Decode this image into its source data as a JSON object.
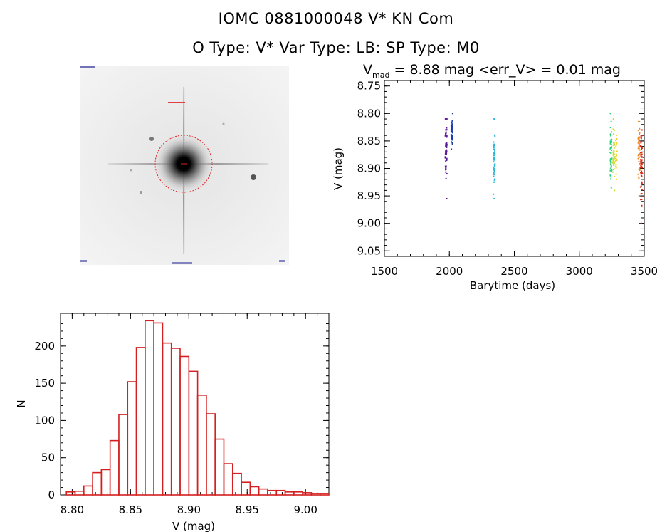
{
  "header": {
    "title_line1": "IOMC 0881000048    V* KN Com",
    "title_line2": "O Type: V*  Var Type: LB:  SP Type: M0"
  },
  "lightcurve": {
    "title_main": "V",
    "title_sub": "mad",
    "title_rest": " = 8.88 mag <err_V> = 0.01 mag",
    "xlabel": "Barytime (days)",
    "ylabel": "V (mag)",
    "xlim": [
      1500,
      3500
    ],
    "ylim": [
      9.06,
      8.74
    ],
    "xticks": [
      "1500",
      "2000",
      "2500",
      "3000",
      "3500"
    ],
    "yticks": [
      "8.75",
      "8.80",
      "8.85",
      "8.90",
      "8.95",
      "9.00",
      "9.05"
    ],
    "clusters": [
      {
        "x": 1975,
        "ymin": 8.81,
        "ymax": 8.955,
        "center": 8.865,
        "color": "#5a1a9a",
        "n": 60
      },
      {
        "x": 2020,
        "ymin": 8.8,
        "ymax": 8.865,
        "center": 8.835,
        "color": "#1a3ab0",
        "n": 45
      },
      {
        "x": 2345,
        "ymin": 8.81,
        "ymax": 8.955,
        "center": 8.885,
        "color": "#2bb8d8",
        "n": 55
      },
      {
        "x": 3245,
        "ymin": 8.8,
        "ymax": 8.935,
        "center": 8.875,
        "color": "#2ad27a",
        "n": 50
      },
      {
        "x": 3265,
        "ymin": 8.81,
        "ymax": 8.94,
        "center": 8.875,
        "color": "#c8e030",
        "n": 40
      },
      {
        "x": 3285,
        "ymin": 8.84,
        "ymax": 8.92,
        "center": 8.875,
        "color": "#f2d020",
        "n": 25
      },
      {
        "x": 3460,
        "ymin": 8.815,
        "ymax": 8.95,
        "center": 8.87,
        "color": "#f08a20",
        "n": 40
      },
      {
        "x": 3478,
        "ymin": 8.83,
        "ymax": 9.0,
        "center": 8.89,
        "color": "#e02a10",
        "n": 60
      }
    ]
  },
  "histogram": {
    "xlabel": "V (mag)",
    "ylabel": "N",
    "xlim": [
      8.79,
      9.02
    ],
    "ylim": [
      0,
      240
    ],
    "xticks": [
      "8.80",
      "8.85",
      "8.90",
      "8.95",
      "9.00"
    ],
    "yticks": [
      "0",
      "50",
      "100",
      "150",
      "200"
    ],
    "bin_start": 8.795,
    "bin_width": 0.0075,
    "counts": [
      4,
      5,
      12,
      30,
      34,
      73,
      108,
      152,
      198,
      234,
      231,
      204,
      197,
      186,
      166,
      134,
      109,
      75,
      42,
      29,
      17,
      11,
      8,
      6,
      6,
      4,
      4,
      3,
      2,
      2
    ]
  },
  "chart_data": [
    {
      "type": "scatter",
      "title": "V_mad = 8.88 mag <err_V> = 0.01 mag",
      "xlabel": "Barytime (days)",
      "ylabel": "V (mag)",
      "xlim": [
        1500,
        3500
      ],
      "ylim": [
        9.06,
        8.74
      ],
      "series": [
        {
          "x": 1975,
          "y_range": [
            8.81,
            8.955
          ]
        },
        {
          "x": 2020,
          "y_range": [
            8.8,
            8.865
          ]
        },
        {
          "x": 2345,
          "y_range": [
            8.81,
            8.955
          ]
        },
        {
          "x": 3245,
          "y_range": [
            8.8,
            8.935
          ]
        },
        {
          "x": 3265,
          "y_range": [
            8.81,
            8.94
          ]
        },
        {
          "x": 3285,
          "y_range": [
            8.84,
            8.92
          ]
        },
        {
          "x": 3460,
          "y_range": [
            8.815,
            8.95
          ]
        },
        {
          "x": 3478,
          "y_range": [
            8.83,
            9.0
          ]
        }
      ]
    },
    {
      "type": "bar",
      "xlabel": "V (mag)",
      "ylabel": "N",
      "xlim": [
        8.79,
        9.02
      ],
      "ylim": [
        0,
        240
      ],
      "bin_start": 8.795,
      "bin_width": 0.0075,
      "values": [
        4,
        5,
        12,
        30,
        34,
        73,
        108,
        152,
        198,
        234,
        231,
        204,
        197,
        186,
        166,
        134,
        109,
        75,
        42,
        29,
        17,
        11,
        8,
        6,
        6,
        4,
        4,
        3,
        2,
        2
      ]
    }
  ]
}
